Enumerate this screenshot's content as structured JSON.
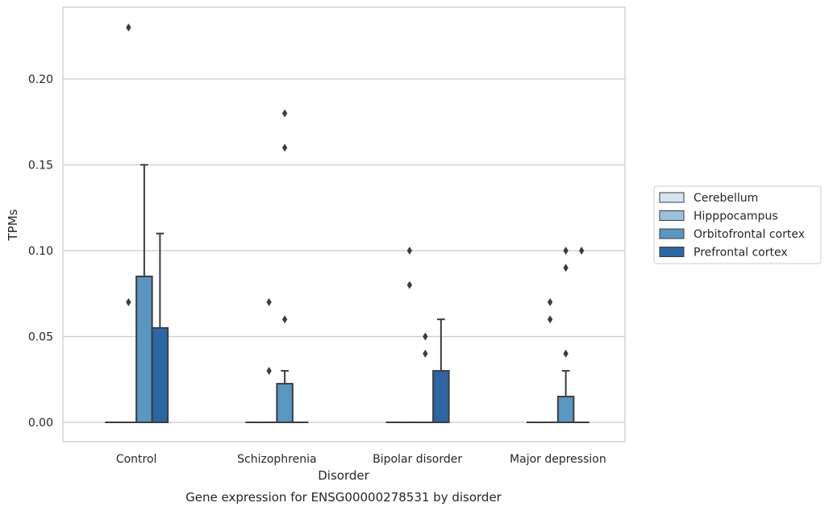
{
  "chart_data": {
    "type": "box",
    "title": "",
    "caption": "Gene expression for ENSG00000278531 by disorder",
    "xlabel": "Disorder",
    "ylabel": "TPMs",
    "ylim": [
      -0.011,
      0.241
    ],
    "yticks": [
      "0.00",
      "0.05",
      "0.10",
      "0.15",
      "0.20"
    ],
    "categories": [
      "Control",
      "Schizophrenia",
      "Bipolar disorder",
      "Major depression"
    ],
    "grid": "horizontal",
    "legend_position": "right",
    "series": [
      {
        "name": "Cerebellum",
        "color": "#d5e3f2",
        "boxes": [
          {
            "q1": 0,
            "median": 0,
            "q3": 0,
            "whisker_low": 0,
            "whisker_high": 0,
            "outliers": []
          },
          {
            "q1": 0,
            "median": 0,
            "q3": 0,
            "whisker_low": 0,
            "whisker_high": 0,
            "outliers": []
          },
          {
            "q1": 0,
            "median": 0,
            "q3": 0,
            "whisker_low": 0,
            "whisker_high": 0,
            "outliers": []
          },
          {
            "q1": 0,
            "median": 0,
            "q3": 0,
            "whisker_low": 0,
            "whisker_high": 0,
            "outliers": []
          }
        ]
      },
      {
        "name": "Hipppocampus",
        "color": "#98c2de",
        "boxes": [
          {
            "q1": 0,
            "median": 0,
            "q3": 0,
            "whisker_low": 0,
            "whisker_high": 0,
            "outliers": [
              0.23,
              0.07
            ]
          },
          {
            "q1": 0,
            "median": 0,
            "q3": 0,
            "whisker_low": 0,
            "whisker_high": 0,
            "outliers": [
              0.07,
              0.03
            ]
          },
          {
            "q1": 0,
            "median": 0,
            "q3": 0,
            "whisker_low": 0,
            "whisker_high": 0,
            "outliers": [
              0.1,
              0.08
            ]
          },
          {
            "q1": 0,
            "median": 0,
            "q3": 0,
            "whisker_low": 0,
            "whisker_high": 0,
            "outliers": [
              0.07,
              0.06
            ]
          }
        ]
      },
      {
        "name": "Orbitofrontal cortex",
        "color": "#5a96c2",
        "boxes": [
          {
            "q1": 0,
            "median": 0,
            "q3": 0.085,
            "whisker_low": 0,
            "whisker_high": 0.15,
            "outliers": []
          },
          {
            "q1": 0,
            "median": 0,
            "q3": 0.0225,
            "whisker_low": 0,
            "whisker_high": 0.03,
            "outliers": [
              0.18,
              0.16,
              0.06
            ]
          },
          {
            "q1": 0,
            "median": 0,
            "q3": 0,
            "whisker_low": 0,
            "whisker_high": 0,
            "outliers": [
              0.05,
              0.04
            ]
          },
          {
            "q1": 0,
            "median": 0,
            "q3": 0.015,
            "whisker_low": 0,
            "whisker_high": 0.03,
            "outliers": [
              0.1,
              0.09,
              0.04
            ]
          }
        ]
      },
      {
        "name": "Prefrontal cortex",
        "color": "#2b67a4",
        "boxes": [
          {
            "q1": 0,
            "median": 0,
            "q3": 0.055,
            "whisker_low": 0,
            "whisker_high": 0.11,
            "outliers": []
          },
          {
            "q1": 0,
            "median": 0,
            "q3": 0,
            "whisker_low": 0,
            "whisker_high": 0,
            "outliers": []
          },
          {
            "q1": 0,
            "median": 0,
            "q3": 0.03,
            "whisker_low": 0,
            "whisker_high": 0.06,
            "outliers": []
          },
          {
            "q1": 0,
            "median": 0,
            "q3": 0,
            "whisker_low": 0,
            "whisker_high": 0,
            "outliers": [
              0.1
            ]
          }
        ]
      }
    ]
  },
  "colors": {
    "background": "#ffffff",
    "grid": "#cccccc",
    "spine": "#cccccc",
    "line": "#3d3d3d",
    "text": "#262626"
  }
}
